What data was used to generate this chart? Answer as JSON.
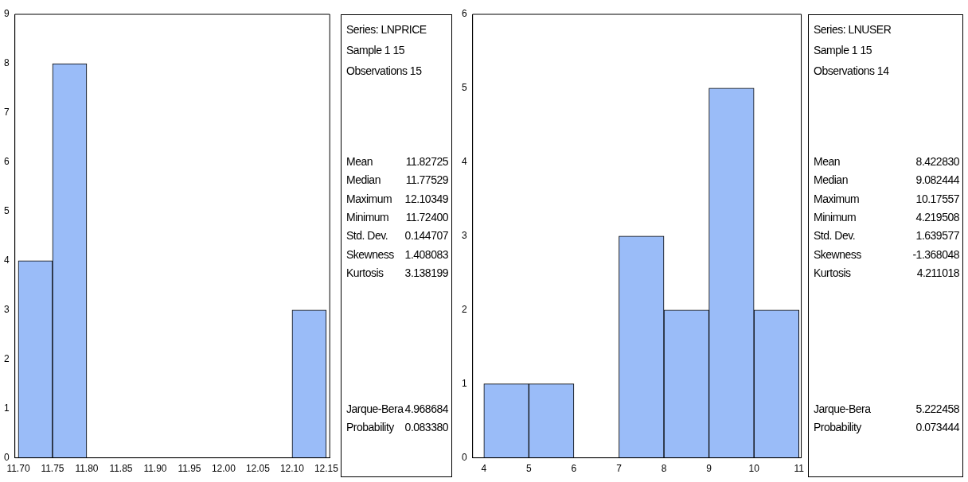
{
  "chart_data": [
    {
      "type": "histogram",
      "bins": [
        11.7,
        11.75,
        11.8,
        11.85,
        11.9,
        11.95,
        12.0,
        12.05,
        12.1,
        12.15
      ],
      "values": [
        4,
        8,
        0,
        0,
        0,
        0,
        0,
        0,
        3
      ],
      "color": "#9abcf8",
      "xlim": [
        11.695,
        12.155
      ],
      "xticks": [
        {
          "value": 11.7,
          "label": "11.70"
        },
        11.75,
        {
          "value": 11.8,
          "label": "11.80"
        },
        11.85,
        {
          "value": 11.9,
          "label": "11.90"
        },
        11.95,
        {
          "value": 12,
          "label": "12.00"
        },
        12.05,
        {
          "value": 12.1,
          "label": "12.10"
        },
        12.15
      ],
      "ylim": [
        0,
        9
      ],
      "yticks": [
        0,
        1,
        2,
        3,
        4,
        5,
        6,
        7,
        8,
        9
      ],
      "grid": false,
      "legend": false
    },
    {
      "type": "other",
      "annotations": [
        "Series: LNPRICE",
        "Sample 1 15",
        "Observations 15",
        "Mean",
        "11.82725",
        "Median",
        "11.77529",
        "Maximum",
        "12.10349",
        "Minimum",
        "11.72400",
        "Std. Dev.",
        "0.144707",
        "Skewness",
        "1.408083",
        "Kurtosis",
        "3.138199",
        "Jarque-Bera",
        "4.968684",
        "Probability",
        "0.083380"
      ]
    },
    {
      "type": "histogram",
      "bins": [
        4,
        5,
        6,
        7,
        8,
        9,
        10,
        11
      ],
      "values": [
        1,
        1,
        0,
        3,
        2,
        5,
        2
      ],
      "color": "#9abcf8",
      "xlim": [
        3.75,
        11.05
      ],
      "xticks": [
        4,
        5,
        6,
        7,
        8,
        9,
        10,
        11
      ],
      "ylim": [
        0,
        6
      ],
      "yticks": [
        0,
        1,
        2,
        3,
        4,
        5,
        6
      ],
      "grid": false,
      "legend": false
    },
    {
      "type": "other",
      "annotations": [
        "Series: LNUSER",
        "Sample 1 15",
        "Observations 14",
        "Mean",
        "8.422830",
        "Median",
        "9.082444",
        "Maximum",
        "10.17557",
        "Minimum",
        "4.219508",
        "Std. Dev.",
        "1.639577",
        "Skewness",
        "-1.368048",
        "Kurtosis",
        "4.211018",
        "Jarque-Bera",
        "5.222458",
        "Probability",
        "0.073444"
      ]
    }
  ]
}
